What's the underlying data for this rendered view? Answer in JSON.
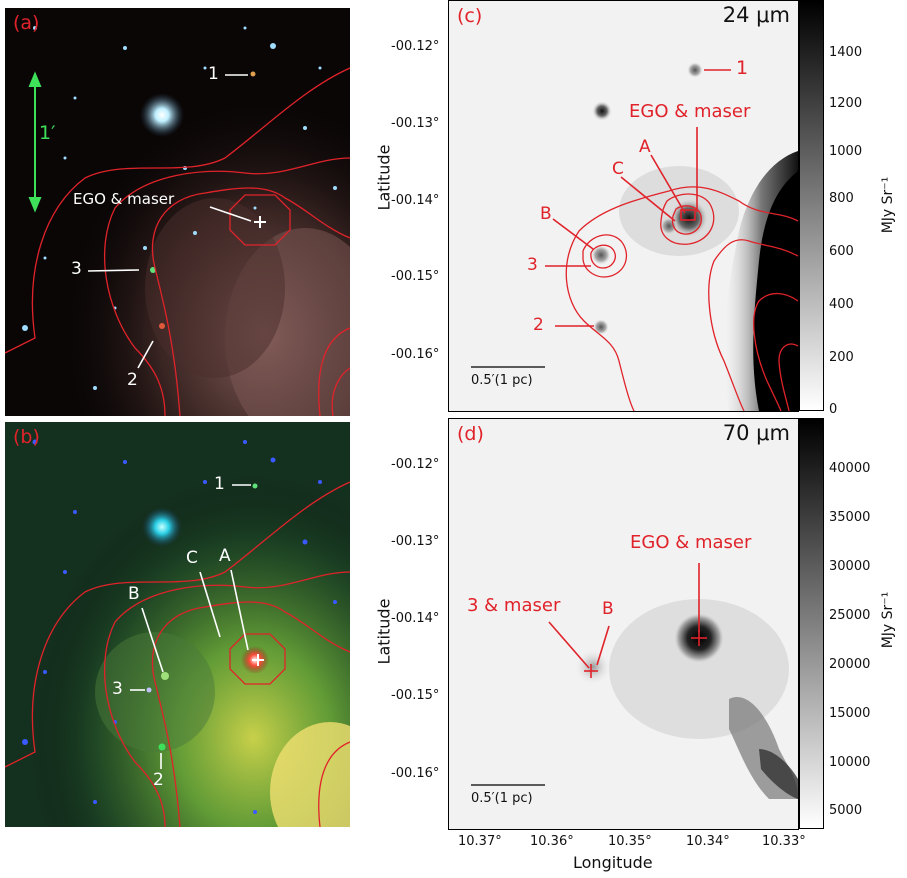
{
  "panels": {
    "a": {
      "label": "(a)",
      "scale_label": "1′",
      "annotations": {
        "src1": "1",
        "ego": "EGO & maser",
        "src3": "3",
        "src2": "2"
      }
    },
    "b": {
      "label": "(b)",
      "annotations": {
        "src1": "1",
        "A": "A",
        "B": "B",
        "C": "C",
        "src3": "3",
        "src2": "2"
      }
    },
    "c": {
      "label": "(c)",
      "wavelength": "24 μm",
      "annotations": {
        "src1": "1",
        "ego": "EGO & maser",
        "A": "A",
        "C": "C",
        "B": "B",
        "src3": "3",
        "src2": "2"
      },
      "scalebar": "0.5′(1 pc)",
      "colorbar": {
        "label": "MJy Sr⁻¹",
        "ticks": [
          "0",
          "200",
          "400",
          "600",
          "800",
          "1000",
          "1200",
          "1400"
        ]
      }
    },
    "d": {
      "label": "(d)",
      "wavelength": "70 μm",
      "annotations": {
        "ego": "EGO & maser",
        "src3": "3 & maser",
        "B": "B"
      },
      "scalebar": "0.5′(1 pc)",
      "colorbar": {
        "label": "MJy Sr⁻¹",
        "ticks": [
          "5000",
          "10000",
          "15000",
          "20000",
          "25000",
          "30000",
          "35000",
          "40000"
        ]
      }
    }
  },
  "axes": {
    "ylabel": "Latitude",
    "xlabel": "Longitude",
    "yticks": [
      "-00.12°",
      "-00.13°",
      "-00.14°",
      "-00.15°",
      "-00.16°"
    ],
    "xticks": [
      "10.37°",
      "10.36°",
      "10.35°",
      "10.34°",
      "10.33°"
    ]
  }
}
